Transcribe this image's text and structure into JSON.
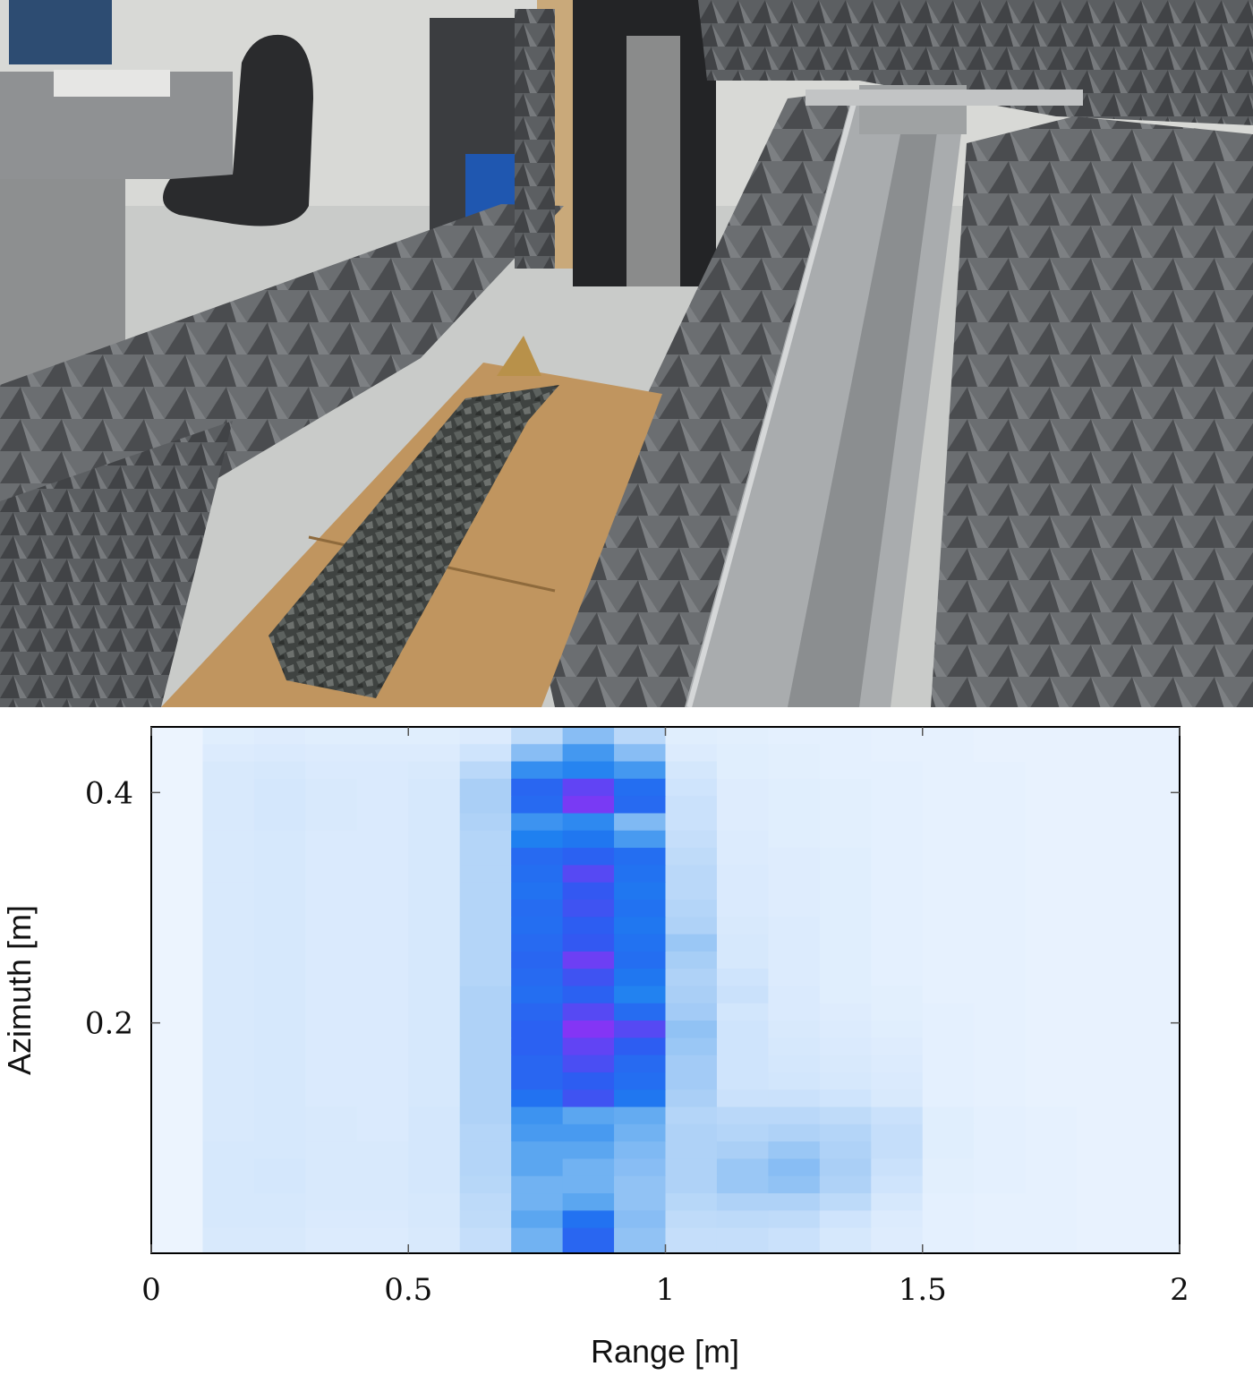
{
  "photo": {
    "subject": "anechoic-chamber-radar-setup",
    "colors": {
      "absorber": "#5f6164",
      "cardboard": "#c0955f",
      "gravel": "#4e5250",
      "rail": "#b9bcbf",
      "floor": "#c9cbc9"
    }
  },
  "chart_data": {
    "type": "heatmap",
    "title": "",
    "xlabel": "Range [m]",
    "ylabel": "Azimuth [m]",
    "xlim": [
      0,
      2
    ],
    "ylim": [
      0,
      0.457
    ],
    "xticks": [
      0,
      0.5,
      1,
      1.5,
      2
    ],
    "xtick_labels": [
      "0",
      "0.5",
      "1",
      "1.5",
      "2"
    ],
    "yticks": [
      0.2,
      0.4
    ],
    "ytick_labels": [
      "0.2",
      "0.4"
    ],
    "x_bin_width": 0.1,
    "azimuth_bins": [
      0.015,
      0.03,
      0.045,
      0.06,
      0.075,
      0.09,
      0.105,
      0.12,
      0.135,
      0.15,
      0.165,
      0.18,
      0.195,
      0.21,
      0.225,
      0.24,
      0.255,
      0.27,
      0.285,
      0.3,
      0.315,
      0.33,
      0.345,
      0.36,
      0.375,
      0.39,
      0.405,
      0.42,
      0.435,
      0.45
    ],
    "range_bin_starts": [
      0,
      0.1,
      0.2,
      0.3,
      0.4,
      0.5,
      0.6,
      0.7,
      0.8,
      0.9,
      1.0,
      1.1,
      1.2,
      1.3,
      1.4,
      1.5,
      1.6,
      1.7,
      1.8,
      1.9
    ],
    "colormap": [
      "#f4f9ff",
      "#d3e6fc",
      "#a6cdf6",
      "#5ba6f0",
      "#1c7ef0",
      "#2f5af2",
      "#9030f5"
    ],
    "grid": false,
    "legend": "none",
    "normalized_intensity": [
      [
        0.04,
        0.14,
        0.14,
        0.12,
        0.12,
        0.14,
        0.22,
        0.45,
        0.78,
        0.38,
        0.22,
        0.22,
        0.2,
        0.15,
        0.11,
        0.08,
        0.07,
        0.07,
        0.06,
        0.06
      ],
      [
        0.04,
        0.15,
        0.15,
        0.13,
        0.13,
        0.15,
        0.24,
        0.5,
        0.72,
        0.4,
        0.24,
        0.25,
        0.24,
        0.18,
        0.12,
        0.08,
        0.07,
        0.07,
        0.06,
        0.06
      ],
      [
        0.04,
        0.15,
        0.15,
        0.14,
        0.14,
        0.15,
        0.25,
        0.45,
        0.5,
        0.38,
        0.27,
        0.3,
        0.3,
        0.25,
        0.15,
        0.08,
        0.07,
        0.07,
        0.06,
        0.06
      ],
      [
        0.04,
        0.15,
        0.16,
        0.14,
        0.14,
        0.16,
        0.27,
        0.45,
        0.45,
        0.38,
        0.3,
        0.36,
        0.38,
        0.3,
        0.18,
        0.09,
        0.08,
        0.07,
        0.06,
        0.06
      ],
      [
        0.04,
        0.15,
        0.16,
        0.14,
        0.14,
        0.16,
        0.28,
        0.5,
        0.45,
        0.4,
        0.3,
        0.36,
        0.4,
        0.32,
        0.2,
        0.09,
        0.08,
        0.07,
        0.06,
        0.06
      ],
      [
        0.04,
        0.15,
        0.15,
        0.14,
        0.14,
        0.16,
        0.28,
        0.5,
        0.5,
        0.42,
        0.3,
        0.32,
        0.36,
        0.3,
        0.22,
        0.1,
        0.08,
        0.07,
        0.06,
        0.06
      ],
      [
        0.04,
        0.14,
        0.15,
        0.14,
        0.13,
        0.16,
        0.28,
        0.55,
        0.55,
        0.45,
        0.3,
        0.28,
        0.3,
        0.28,
        0.22,
        0.1,
        0.08,
        0.07,
        0.06,
        0.06
      ],
      [
        0.04,
        0.14,
        0.15,
        0.14,
        0.13,
        0.16,
        0.3,
        0.58,
        0.5,
        0.48,
        0.28,
        0.26,
        0.26,
        0.24,
        0.2,
        0.1,
        0.08,
        0.07,
        0.06,
        0.06
      ],
      [
        0.04,
        0.14,
        0.15,
        0.13,
        0.13,
        0.15,
        0.3,
        0.72,
        0.86,
        0.7,
        0.32,
        0.2,
        0.2,
        0.18,
        0.14,
        0.08,
        0.07,
        0.06,
        0.06,
        0.06
      ],
      [
        0.04,
        0.14,
        0.15,
        0.13,
        0.13,
        0.15,
        0.3,
        0.78,
        0.82,
        0.74,
        0.34,
        0.18,
        0.17,
        0.15,
        0.13,
        0.08,
        0.07,
        0.06,
        0.06,
        0.06
      ],
      [
        0.04,
        0.14,
        0.15,
        0.13,
        0.13,
        0.15,
        0.3,
        0.78,
        0.88,
        0.76,
        0.34,
        0.18,
        0.16,
        0.14,
        0.12,
        0.08,
        0.07,
        0.06,
        0.06,
        0.06
      ],
      [
        0.04,
        0.14,
        0.15,
        0.13,
        0.13,
        0.15,
        0.3,
        0.8,
        0.92,
        0.82,
        0.36,
        0.18,
        0.15,
        0.13,
        0.11,
        0.08,
        0.07,
        0.06,
        0.06,
        0.06
      ],
      [
        0.04,
        0.14,
        0.15,
        0.13,
        0.13,
        0.15,
        0.3,
        0.8,
        0.98,
        0.9,
        0.38,
        0.18,
        0.14,
        0.12,
        0.1,
        0.08,
        0.07,
        0.06,
        0.06,
        0.06
      ],
      [
        0.04,
        0.14,
        0.15,
        0.13,
        0.13,
        0.15,
        0.3,
        0.78,
        0.9,
        0.75,
        0.34,
        0.17,
        0.13,
        0.11,
        0.09,
        0.08,
        0.07,
        0.06,
        0.06,
        0.06
      ],
      [
        0.04,
        0.14,
        0.15,
        0.13,
        0.13,
        0.15,
        0.3,
        0.74,
        0.8,
        0.65,
        0.32,
        0.2,
        0.13,
        0.1,
        0.09,
        0.07,
        0.07,
        0.06,
        0.06,
        0.06
      ],
      [
        0.04,
        0.14,
        0.15,
        0.13,
        0.13,
        0.15,
        0.28,
        0.76,
        0.86,
        0.7,
        0.3,
        0.18,
        0.12,
        0.1,
        0.08,
        0.07,
        0.07,
        0.06,
        0.06,
        0.06
      ],
      [
        0.04,
        0.14,
        0.15,
        0.13,
        0.13,
        0.15,
        0.28,
        0.78,
        0.94,
        0.74,
        0.33,
        0.15,
        0.12,
        0.1,
        0.08,
        0.07,
        0.07,
        0.06,
        0.06,
        0.06
      ],
      [
        0.04,
        0.14,
        0.15,
        0.13,
        0.13,
        0.15,
        0.28,
        0.76,
        0.84,
        0.72,
        0.36,
        0.15,
        0.12,
        0.1,
        0.08,
        0.07,
        0.07,
        0.06,
        0.06,
        0.06
      ],
      [
        0.04,
        0.14,
        0.15,
        0.13,
        0.13,
        0.15,
        0.28,
        0.74,
        0.82,
        0.7,
        0.3,
        0.14,
        0.12,
        0.1,
        0.08,
        0.07,
        0.07,
        0.06,
        0.06,
        0.06
      ],
      [
        0.04,
        0.14,
        0.15,
        0.13,
        0.13,
        0.15,
        0.28,
        0.75,
        0.86,
        0.72,
        0.28,
        0.13,
        0.11,
        0.1,
        0.08,
        0.07,
        0.07,
        0.06,
        0.06,
        0.06
      ],
      [
        0.04,
        0.14,
        0.15,
        0.13,
        0.13,
        0.15,
        0.28,
        0.72,
        0.84,
        0.7,
        0.26,
        0.13,
        0.11,
        0.1,
        0.08,
        0.07,
        0.07,
        0.06,
        0.06,
        0.06
      ],
      [
        0.04,
        0.14,
        0.15,
        0.13,
        0.13,
        0.15,
        0.28,
        0.74,
        0.9,
        0.72,
        0.26,
        0.13,
        0.11,
        0.1,
        0.08,
        0.07,
        0.07,
        0.06,
        0.06,
        0.06
      ],
      [
        0.04,
        0.14,
        0.15,
        0.13,
        0.13,
        0.15,
        0.28,
        0.76,
        0.8,
        0.74,
        0.24,
        0.12,
        0.11,
        0.1,
        0.08,
        0.07,
        0.07,
        0.06,
        0.06,
        0.06
      ],
      [
        0.04,
        0.14,
        0.15,
        0.13,
        0.13,
        0.15,
        0.28,
        0.66,
        0.7,
        0.55,
        0.22,
        0.12,
        0.1,
        0.09,
        0.08,
        0.07,
        0.07,
        0.06,
        0.06,
        0.06
      ],
      [
        0.04,
        0.14,
        0.16,
        0.14,
        0.13,
        0.15,
        0.3,
        0.58,
        0.62,
        0.42,
        0.2,
        0.11,
        0.1,
        0.09,
        0.08,
        0.07,
        0.07,
        0.06,
        0.06,
        0.06
      ],
      [
        0.04,
        0.14,
        0.16,
        0.14,
        0.13,
        0.15,
        0.32,
        0.76,
        0.96,
        0.76,
        0.2,
        0.11,
        0.1,
        0.09,
        0.08,
        0.07,
        0.07,
        0.06,
        0.06,
        0.06
      ],
      [
        0.04,
        0.14,
        0.16,
        0.14,
        0.13,
        0.15,
        0.32,
        0.78,
        0.92,
        0.74,
        0.18,
        0.11,
        0.1,
        0.09,
        0.08,
        0.07,
        0.07,
        0.06,
        0.06,
        0.06
      ],
      [
        0.04,
        0.14,
        0.15,
        0.13,
        0.13,
        0.14,
        0.26,
        0.6,
        0.64,
        0.56,
        0.16,
        0.1,
        0.09,
        0.08,
        0.08,
        0.07,
        0.07,
        0.06,
        0.06,
        0.06
      ],
      [
        0.04,
        0.12,
        0.13,
        0.12,
        0.12,
        0.12,
        0.18,
        0.4,
        0.56,
        0.4,
        0.12,
        0.1,
        0.09,
        0.08,
        0.07,
        0.07,
        0.06,
        0.06,
        0.06,
        0.06
      ],
      [
        0.04,
        0.1,
        0.11,
        0.1,
        0.1,
        0.1,
        0.12,
        0.24,
        0.4,
        0.26,
        0.1,
        0.09,
        0.08,
        0.08,
        0.07,
        0.07,
        0.06,
        0.06,
        0.06,
        0.06
      ]
    ]
  }
}
